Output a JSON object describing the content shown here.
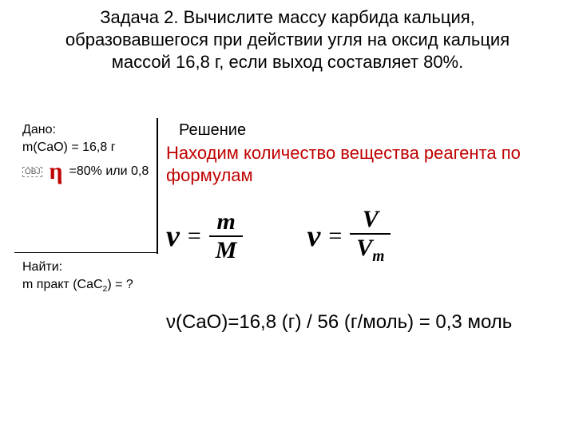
{
  "title": "Задача 2. Вычислите массу карбида кальция, образовавшегося при действии угля на оксид кальция массой 16,8 г, если выход составляет 80%.",
  "given": {
    "label": "Дано:",
    "mass_line": "m(CaO) = 16,8 г",
    "obj_tag": "OBJ",
    "eta_value": "=80% или 0,8"
  },
  "find": {
    "label": "Найти:",
    "line": "m практ (CaC2) = ?"
  },
  "solution": {
    "label": "Решение",
    "red_text": "Находим количество вещества реагента по формулам",
    "formula1": {
      "nu": "ν",
      "eq": "=",
      "num": "m",
      "den": "M"
    },
    "formula2": {
      "nu": "ν",
      "eq": "=",
      "num": "V",
      "den_base": "V",
      "den_sub": "m"
    },
    "calc": "ν(CaO)=16,8 (г) / 56 (г/моль) = 0,3 моль"
  },
  "colors": {
    "accent_red": "#c00000",
    "text": "#000000",
    "background": "#ffffff"
  },
  "typography": {
    "title_fontsize": 22,
    "body_fontsize": 16,
    "solution_label_fontsize": 20,
    "red_text_fontsize": 22,
    "formula_nu_fontsize": 38,
    "formula_frac_fontsize": 30,
    "calc_fontsize": 24
  }
}
